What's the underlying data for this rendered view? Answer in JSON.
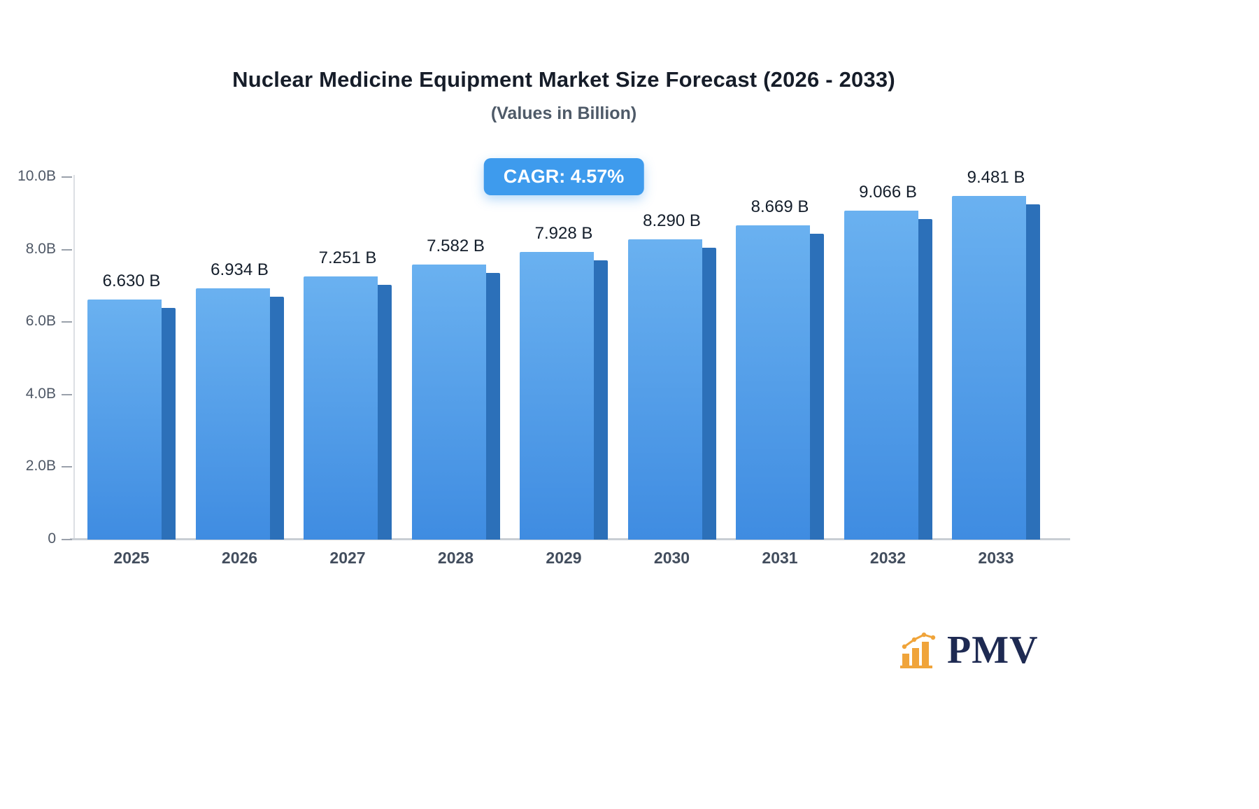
{
  "chart_data": {
    "type": "bar",
    "title": "Nuclear Medicine Equipment Market Size Forecast (2026 - 2033)",
    "subtitle": "(Values in Billion)",
    "cagr_label": "CAGR: 4.57%",
    "categories": [
      "2025",
      "2026",
      "2027",
      "2028",
      "2029",
      "2030",
      "2031",
      "2032",
      "2033"
    ],
    "values": [
      6.63,
      6.934,
      7.251,
      7.582,
      7.928,
      8.29,
      8.669,
      9.066,
      9.481
    ],
    "value_labels": [
      "6.630 B",
      "6.934 B",
      "7.251 B",
      "7.582 B",
      "7.928 B",
      "8.290 B",
      "8.669 B",
      "9.066 B",
      "9.481 B"
    ],
    "xlabel": "",
    "ylabel": "",
    "ylim": [
      0,
      10
    ],
    "grid": false,
    "legend_position": "none",
    "yticks": [
      {
        "value": 0,
        "label": "0"
      },
      {
        "value": 2,
        "label": "2.0B"
      },
      {
        "value": 4,
        "label": "4.0B"
      },
      {
        "value": 6,
        "label": "6.0B"
      },
      {
        "value": 8,
        "label": "8.0B"
      },
      {
        "value": 10,
        "label": "10.0B"
      }
    ],
    "colors": {
      "bar_gradient_top": "#6ab1f0",
      "bar_gradient_bottom": "#3f8ce1",
      "bar_side_shade": "#2c70b9",
      "badge_background": "#3e9bed",
      "badge_text": "#ffffff"
    }
  },
  "branding": {
    "logo_text": "PMV",
    "logo_text_color": "#1e2a52",
    "logo_icon": "bar-chart-icon",
    "logo_icon_color": "#f0a43a"
  }
}
